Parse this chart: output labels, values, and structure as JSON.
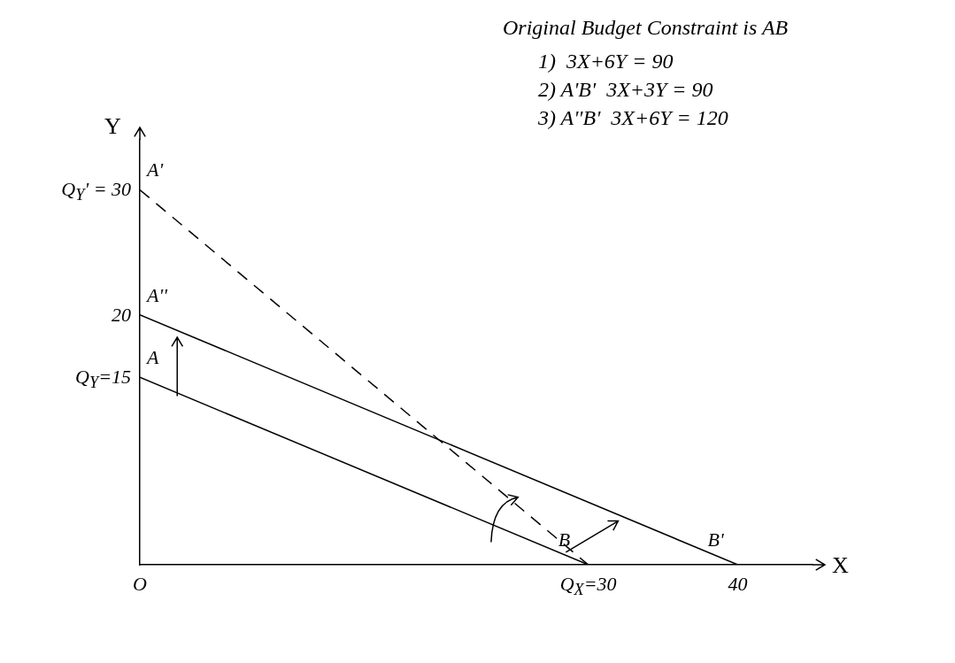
{
  "chart_data": {
    "type": "line",
    "title": "Original Budget Constraint is AB",
    "xlabel": "X",
    "ylabel": "Y",
    "series": [
      {
        "x": [
          0,
          30
        ],
        "values": [
          15,
          0
        ],
        "color": "#000000",
        "line_style": "solid"
      },
      {
        "x": [
          0,
          30
        ],
        "values": [
          30,
          0
        ],
        "color": "#000000",
        "line_style": "dashed"
      },
      {
        "x": [
          0,
          40
        ],
        "values": [
          20,
          0
        ],
        "color": "#000000",
        "line_style": "solid"
      }
    ],
    "xlim": [
      0,
      45
    ],
    "ylim": [
      0,
      34
    ],
    "xticks": [
      {
        "value": 0,
        "label": "O"
      },
      {
        "value": 30,
        "label": "Q$_{X}$=30"
      },
      {
        "value": 40,
        "label": "40"
      }
    ],
    "yticks": [
      {
        "value": 15,
        "label": "Q$_{Y}$=15"
      },
      {
        "value": 20,
        "label": "20"
      },
      {
        "value": 30,
        "label": "Q$_{Y}$' = 30"
      }
    ],
    "grid": false,
    "legend": false,
    "marker": "none",
    "annotations": [
      "1)  3X+6Y = 90",
      "2) A'B'  3X+3Y = 90",
      "3) A''B'  3X+6Y = 120",
      {
        "text": "A'",
        "x": 0,
        "y": 30
      },
      {
        "text": "A''",
        "x": 0,
        "y": 20
      },
      {
        "text": "A",
        "x": 0,
        "y": 15
      },
      {
        "text": "B",
        "x": 30,
        "y": 0
      },
      {
        "text": "B'",
        "x": 40,
        "y": 0
      }
    ]
  }
}
